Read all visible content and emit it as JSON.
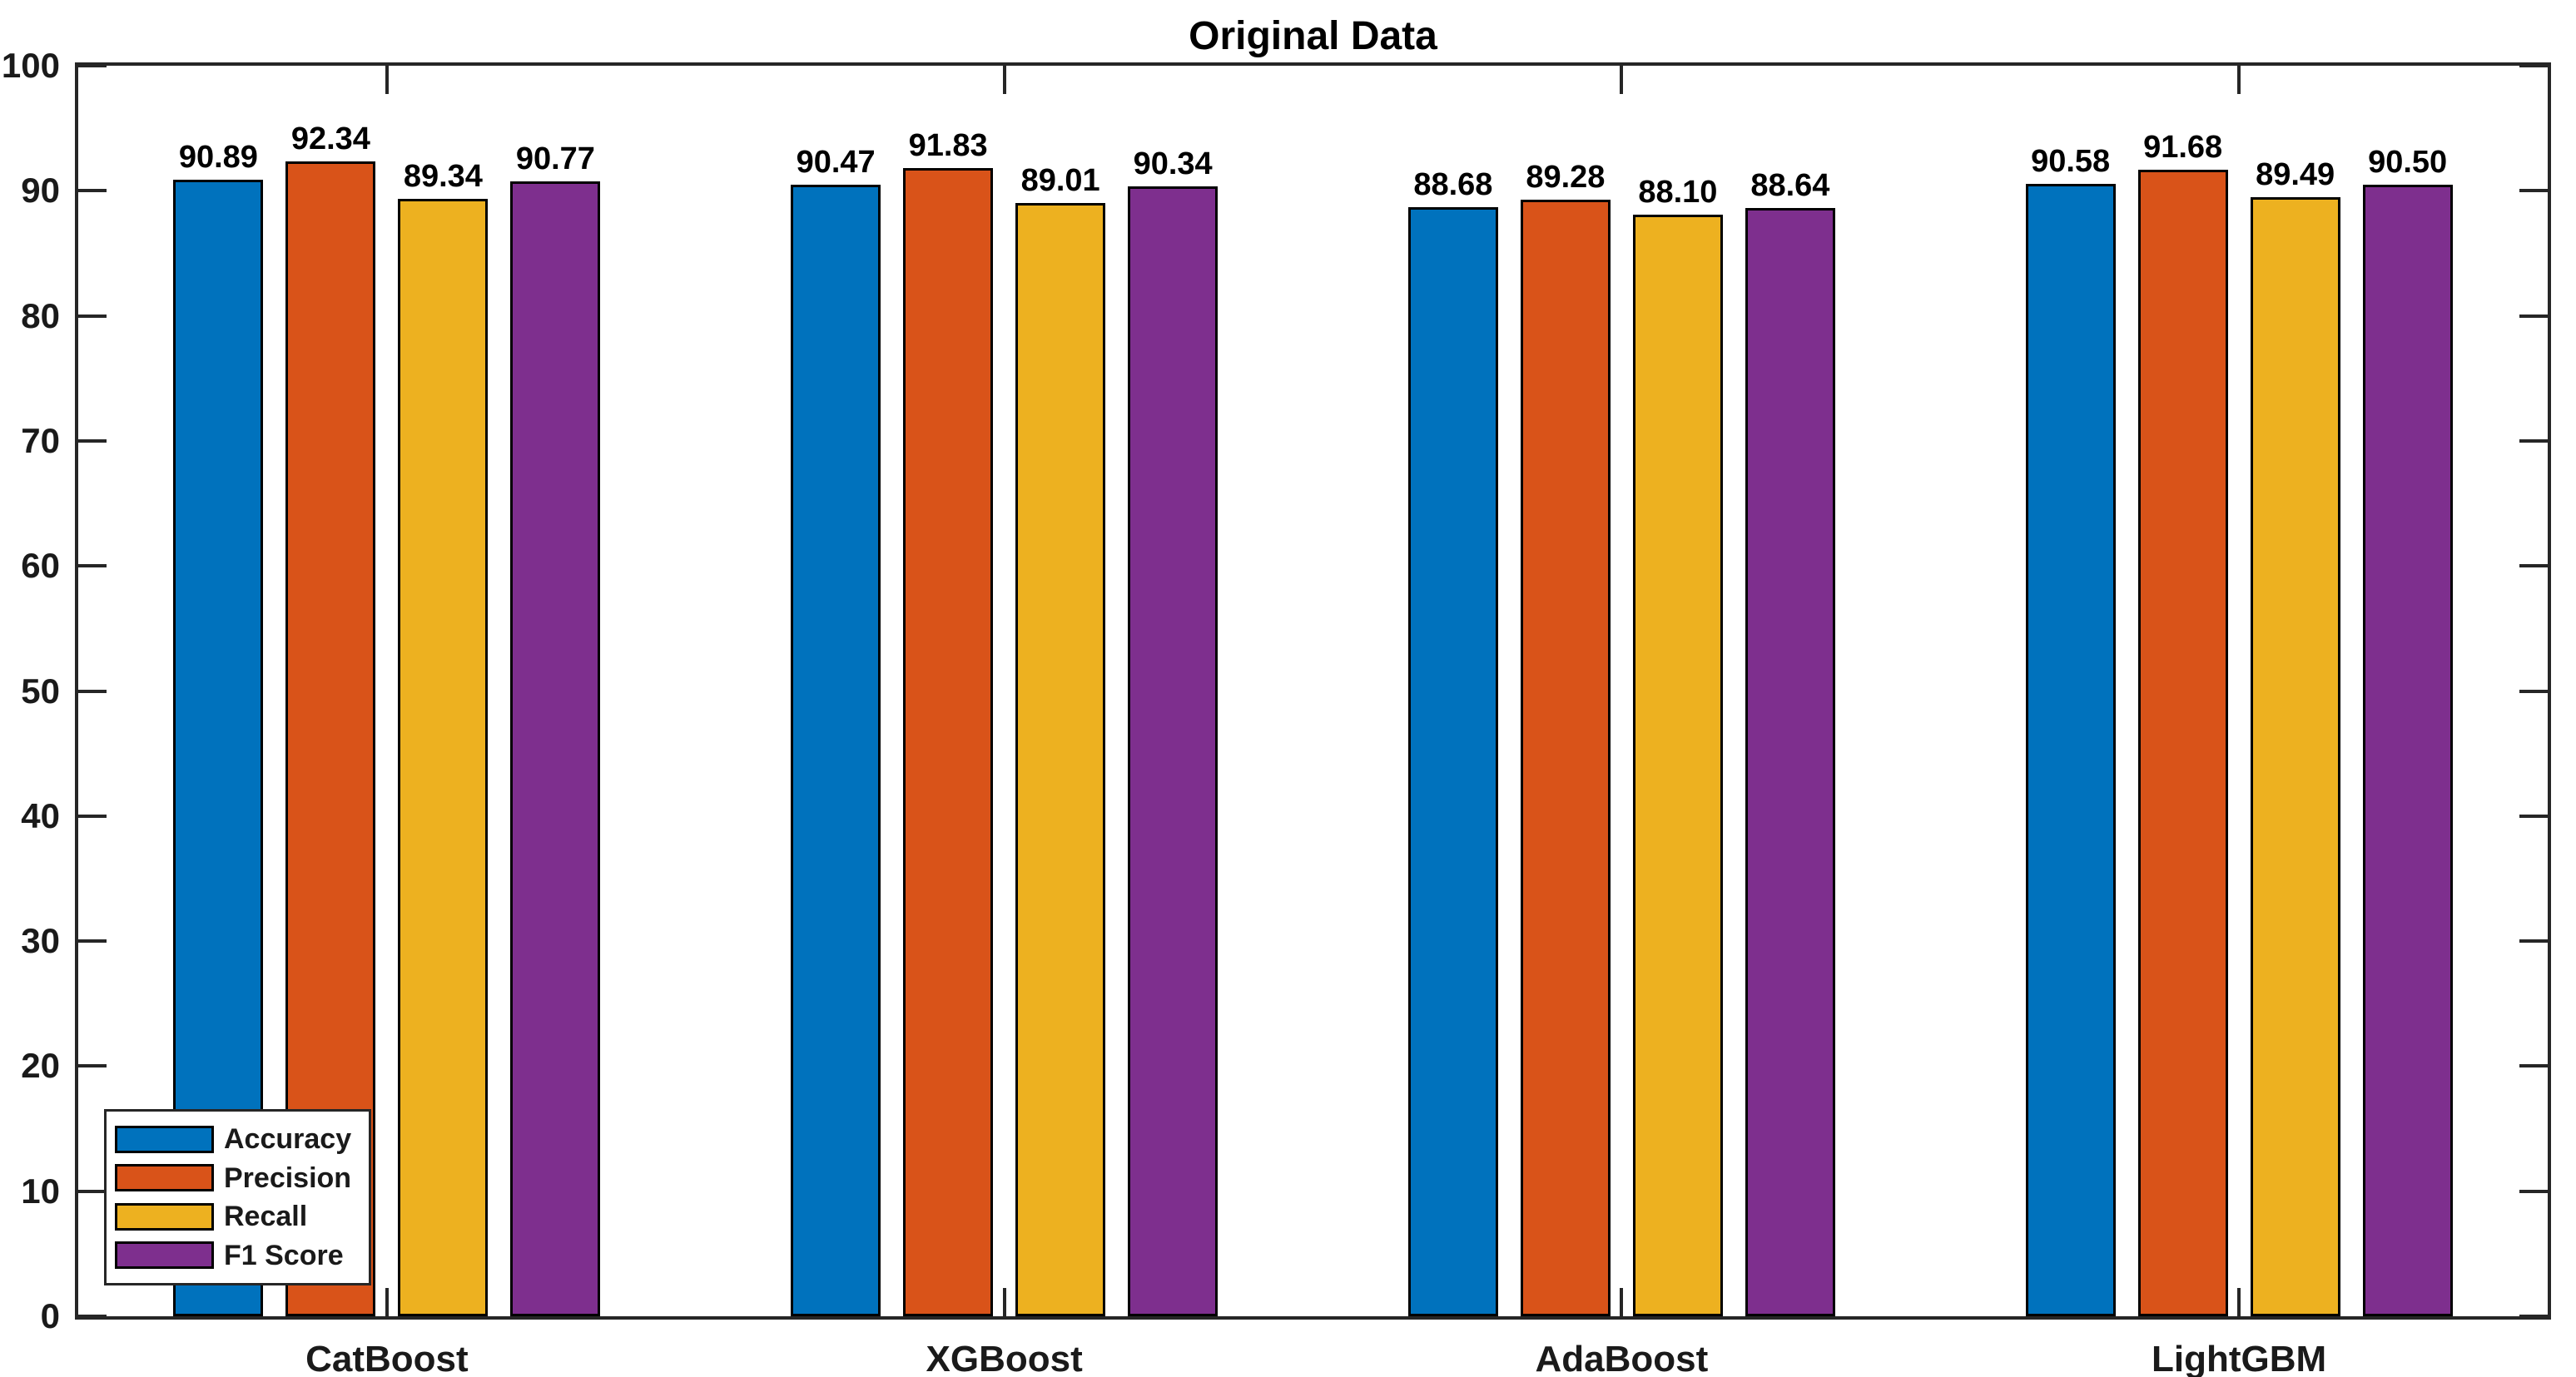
{
  "chart_data": {
    "type": "bar",
    "title": "Original Data",
    "categories": [
      "CatBoost",
      "XGBoost",
      "AdaBoost",
      "LightGBM"
    ],
    "series": [
      {
        "name": "Accuracy",
        "color": "#0072BD",
        "values": [
          90.89,
          90.47,
          88.68,
          90.58
        ]
      },
      {
        "name": "Precision",
        "color": "#D95319",
        "values": [
          92.34,
          91.83,
          89.28,
          91.68
        ]
      },
      {
        "name": "Recall",
        "color": "#EDB120",
        "values": [
          89.34,
          89.01,
          88.1,
          89.49
        ]
      },
      {
        "name": "F1 Score",
        "color": "#7E2F8E",
        "values": [
          90.77,
          90.34,
          88.64,
          90.5
        ]
      }
    ],
    "ylim": [
      0,
      100
    ],
    "yticks": [
      0,
      10,
      20,
      30,
      40,
      50,
      60,
      70,
      80,
      90,
      100
    ],
    "value_label_decimals": 2,
    "bar_value_labels": true,
    "grid": false,
    "legend": {
      "position": "bottom-left",
      "entries": [
        "Accuracy",
        "Precision",
        "Recall",
        "F1 Score"
      ]
    },
    "axis_color": "#262626",
    "bar_edge_color": "#000000",
    "background_color": "#FFFFFF"
  }
}
